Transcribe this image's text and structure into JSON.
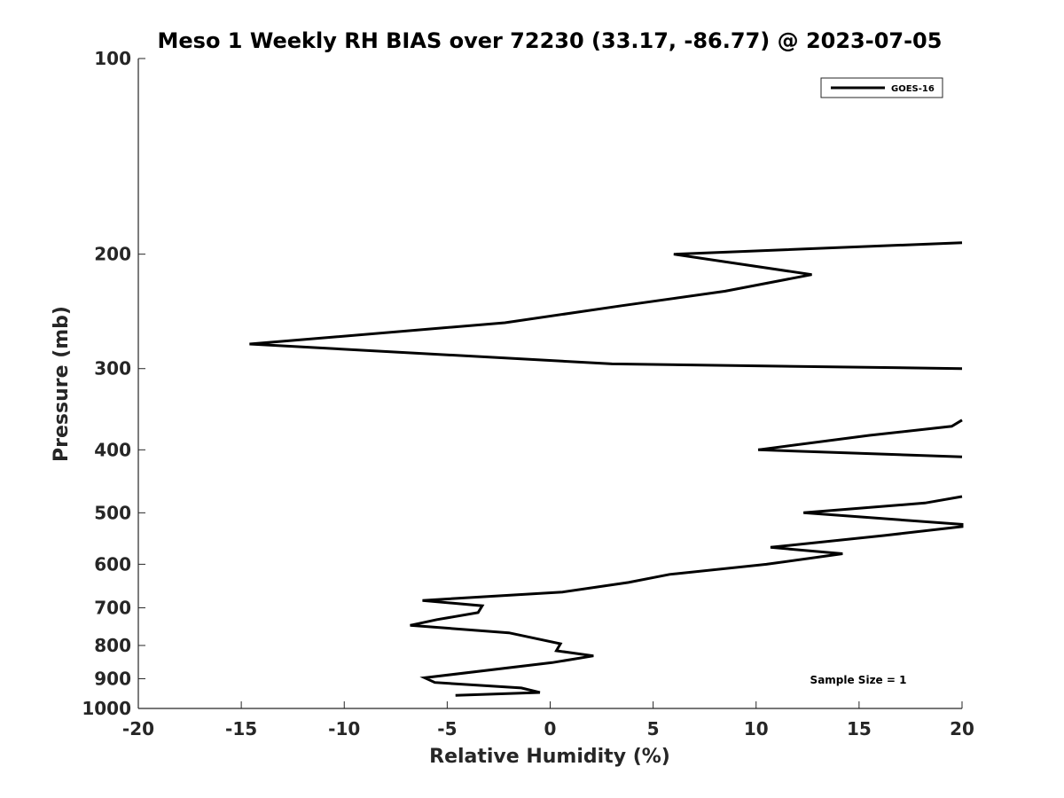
{
  "chart_data": {
    "type": "line",
    "title": "Meso 1 Weekly RH BIAS over 72230 (33.17, -86.77) @ 2023-07-05",
    "xlabel": "Relative Humidity (%)",
    "ylabel": "Pressure (mb)",
    "xlim": [
      -20,
      20
    ],
    "ylim": [
      100,
      1000
    ],
    "yscale": "log",
    "y_reversed": true,
    "x_ticks": [
      -20,
      -15,
      -10,
      -5,
      0,
      5,
      10,
      15,
      20
    ],
    "x_tick_labels": [
      "-20",
      "-15",
      "-10",
      "-5",
      "0",
      "5",
      "10",
      "15",
      "20"
    ],
    "y_ticks": [
      100,
      200,
      300,
      400,
      500,
      600,
      700,
      800,
      900,
      1000
    ],
    "y_tick_labels": [
      "100",
      "200",
      "300",
      "400",
      "500",
      "600",
      "700",
      "800",
      "900",
      "1000"
    ],
    "legend": {
      "position": "top-right",
      "entries": [
        "GOES-16"
      ]
    },
    "annotation": "Sample Size = 1",
    "series": [
      {
        "name": "GOES-16",
        "color": "#000000",
        "segments": [
          {
            "x": [
              20.0,
              6.0,
              12.7,
              8.5,
              3.5,
              -2.2,
              -14.6,
              3.0,
              20.0
            ],
            "y": [
              192,
              200,
              215,
              228,
              240,
              255,
              275,
              295,
              300
            ]
          },
          {
            "x": [
              20.0,
              19.5,
              15.5,
              10.1,
              20.0
            ],
            "y": [
              360,
              368,
              380,
              400,
              410
            ]
          },
          {
            "x": [
              20.0,
              18.2,
              12.3,
              20.0,
              20.0,
              16.2,
              10.7,
              14.2,
              10.5,
              5.8,
              3.8,
              0.6,
              -6.2,
              -3.3,
              -3.5,
              -5.5,
              -6.8,
              -2.0,
              0.5,
              0.3,
              2.1,
              0.1,
              -6.1,
              -5.6,
              -1.4,
              -0.5,
              -4.6
            ],
            "y": [
              472,
              483,
              500,
              521,
              525,
              542,
              565,
              578,
              600,
              622,
              640,
              662,
              682,
              695,
              712,
              730,
              745,
              765,
              795,
              815,
              830,
              850,
              897,
              912,
              930,
              945,
              955
            ]
          }
        ]
      }
    ]
  }
}
